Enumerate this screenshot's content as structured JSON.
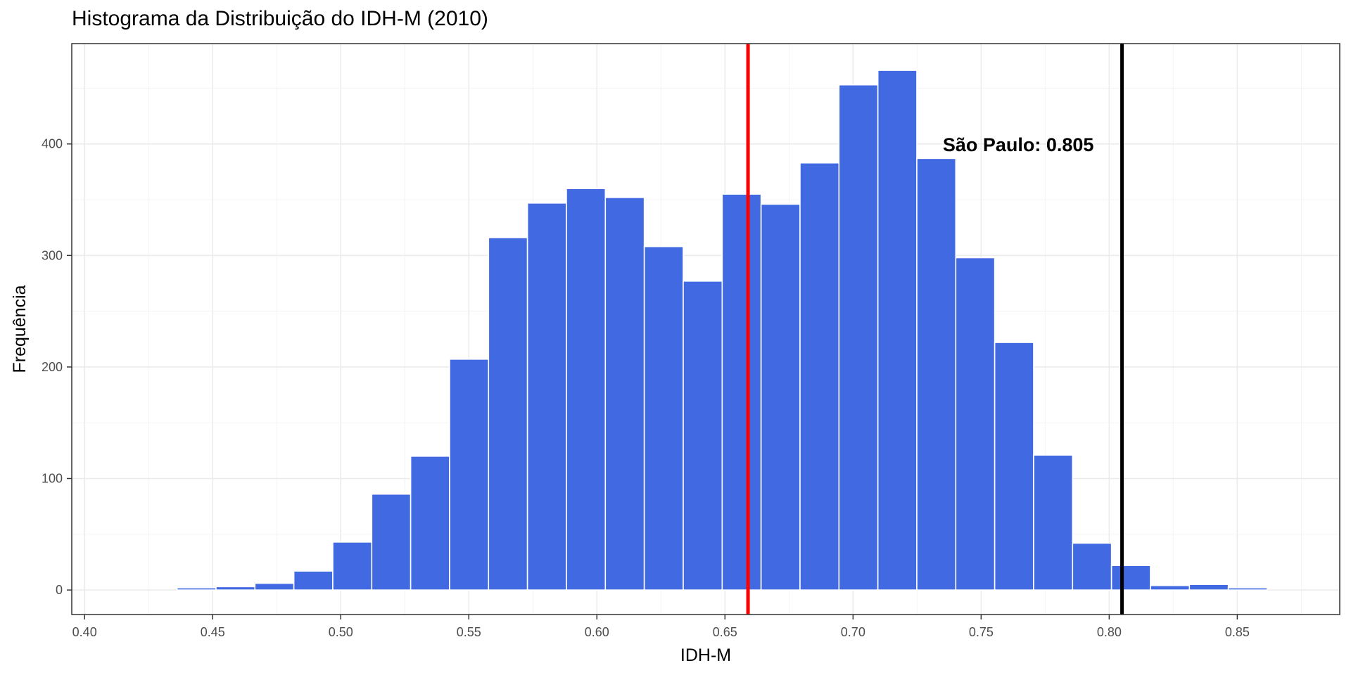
{
  "chart_data": {
    "type": "bar",
    "title": "Histograma da Distribuição do IDH-M (2010)",
    "xlabel": "IDH-M",
    "ylabel": "Frequência",
    "xlim": [
      0.395,
      0.89
    ],
    "ylim": [
      -22,
      490
    ],
    "x_ticks": [
      0.4,
      0.45,
      0.5,
      0.55,
      0.6,
      0.65,
      0.7,
      0.75,
      0.8,
      0.85
    ],
    "x_tick_labels": [
      "0.40",
      "0.45",
      "0.50",
      "0.55",
      "0.60",
      "0.65",
      "0.70",
      "0.75",
      "0.80",
      "0.85"
    ],
    "y_ticks": [
      0,
      100,
      200,
      300,
      400
    ],
    "y_tick_labels": [
      "0",
      "100",
      "200",
      "300",
      "400"
    ],
    "bin_width": 0.0152,
    "bins": [
      {
        "x0": 0.3905,
        "count": 0
      },
      {
        "x0": 0.4057,
        "count": 0
      },
      {
        "x0": 0.4209,
        "count": 0
      },
      {
        "x0": 0.4361,
        "count": 2
      },
      {
        "x0": 0.4513,
        "count": 3
      },
      {
        "x0": 0.4665,
        "count": 6
      },
      {
        "x0": 0.4817,
        "count": 17
      },
      {
        "x0": 0.4969,
        "count": 43
      },
      {
        "x0": 0.5121,
        "count": 86
      },
      {
        "x0": 0.5273,
        "count": 120
      },
      {
        "x0": 0.5425,
        "count": 207
      },
      {
        "x0": 0.5577,
        "count": 316
      },
      {
        "x0": 0.5729,
        "count": 347
      },
      {
        "x0": 0.5881,
        "count": 360
      },
      {
        "x0": 0.6033,
        "count": 352
      },
      {
        "x0": 0.6185,
        "count": 308
      },
      {
        "x0": 0.6337,
        "count": 277
      },
      {
        "x0": 0.6489,
        "count": 355
      },
      {
        "x0": 0.6641,
        "count": 346
      },
      {
        "x0": 0.6793,
        "count": 383
      },
      {
        "x0": 0.6945,
        "count": 453
      },
      {
        "x0": 0.7097,
        "count": 466
      },
      {
        "x0": 0.7249,
        "count": 387
      },
      {
        "x0": 0.7401,
        "count": 298
      },
      {
        "x0": 0.7553,
        "count": 222
      },
      {
        "x0": 0.7705,
        "count": 121
      },
      {
        "x0": 0.7857,
        "count": 42
      },
      {
        "x0": 0.8009,
        "count": 22
      },
      {
        "x0": 0.8161,
        "count": 4
      },
      {
        "x0": 0.8313,
        "count": 5
      },
      {
        "x0": 0.8465,
        "count": 2
      }
    ],
    "bar_color": "#4169E1",
    "bar_outline": "#ffffff",
    "vlines": [
      {
        "x": 0.659,
        "color": "#FF0000"
      },
      {
        "x": 0.805,
        "color": "#000000"
      }
    ],
    "annotation": {
      "text": "São Paulo:  0.805",
      "x": 0.7645,
      "y": 398
    },
    "grid": true,
    "legend": "none"
  }
}
